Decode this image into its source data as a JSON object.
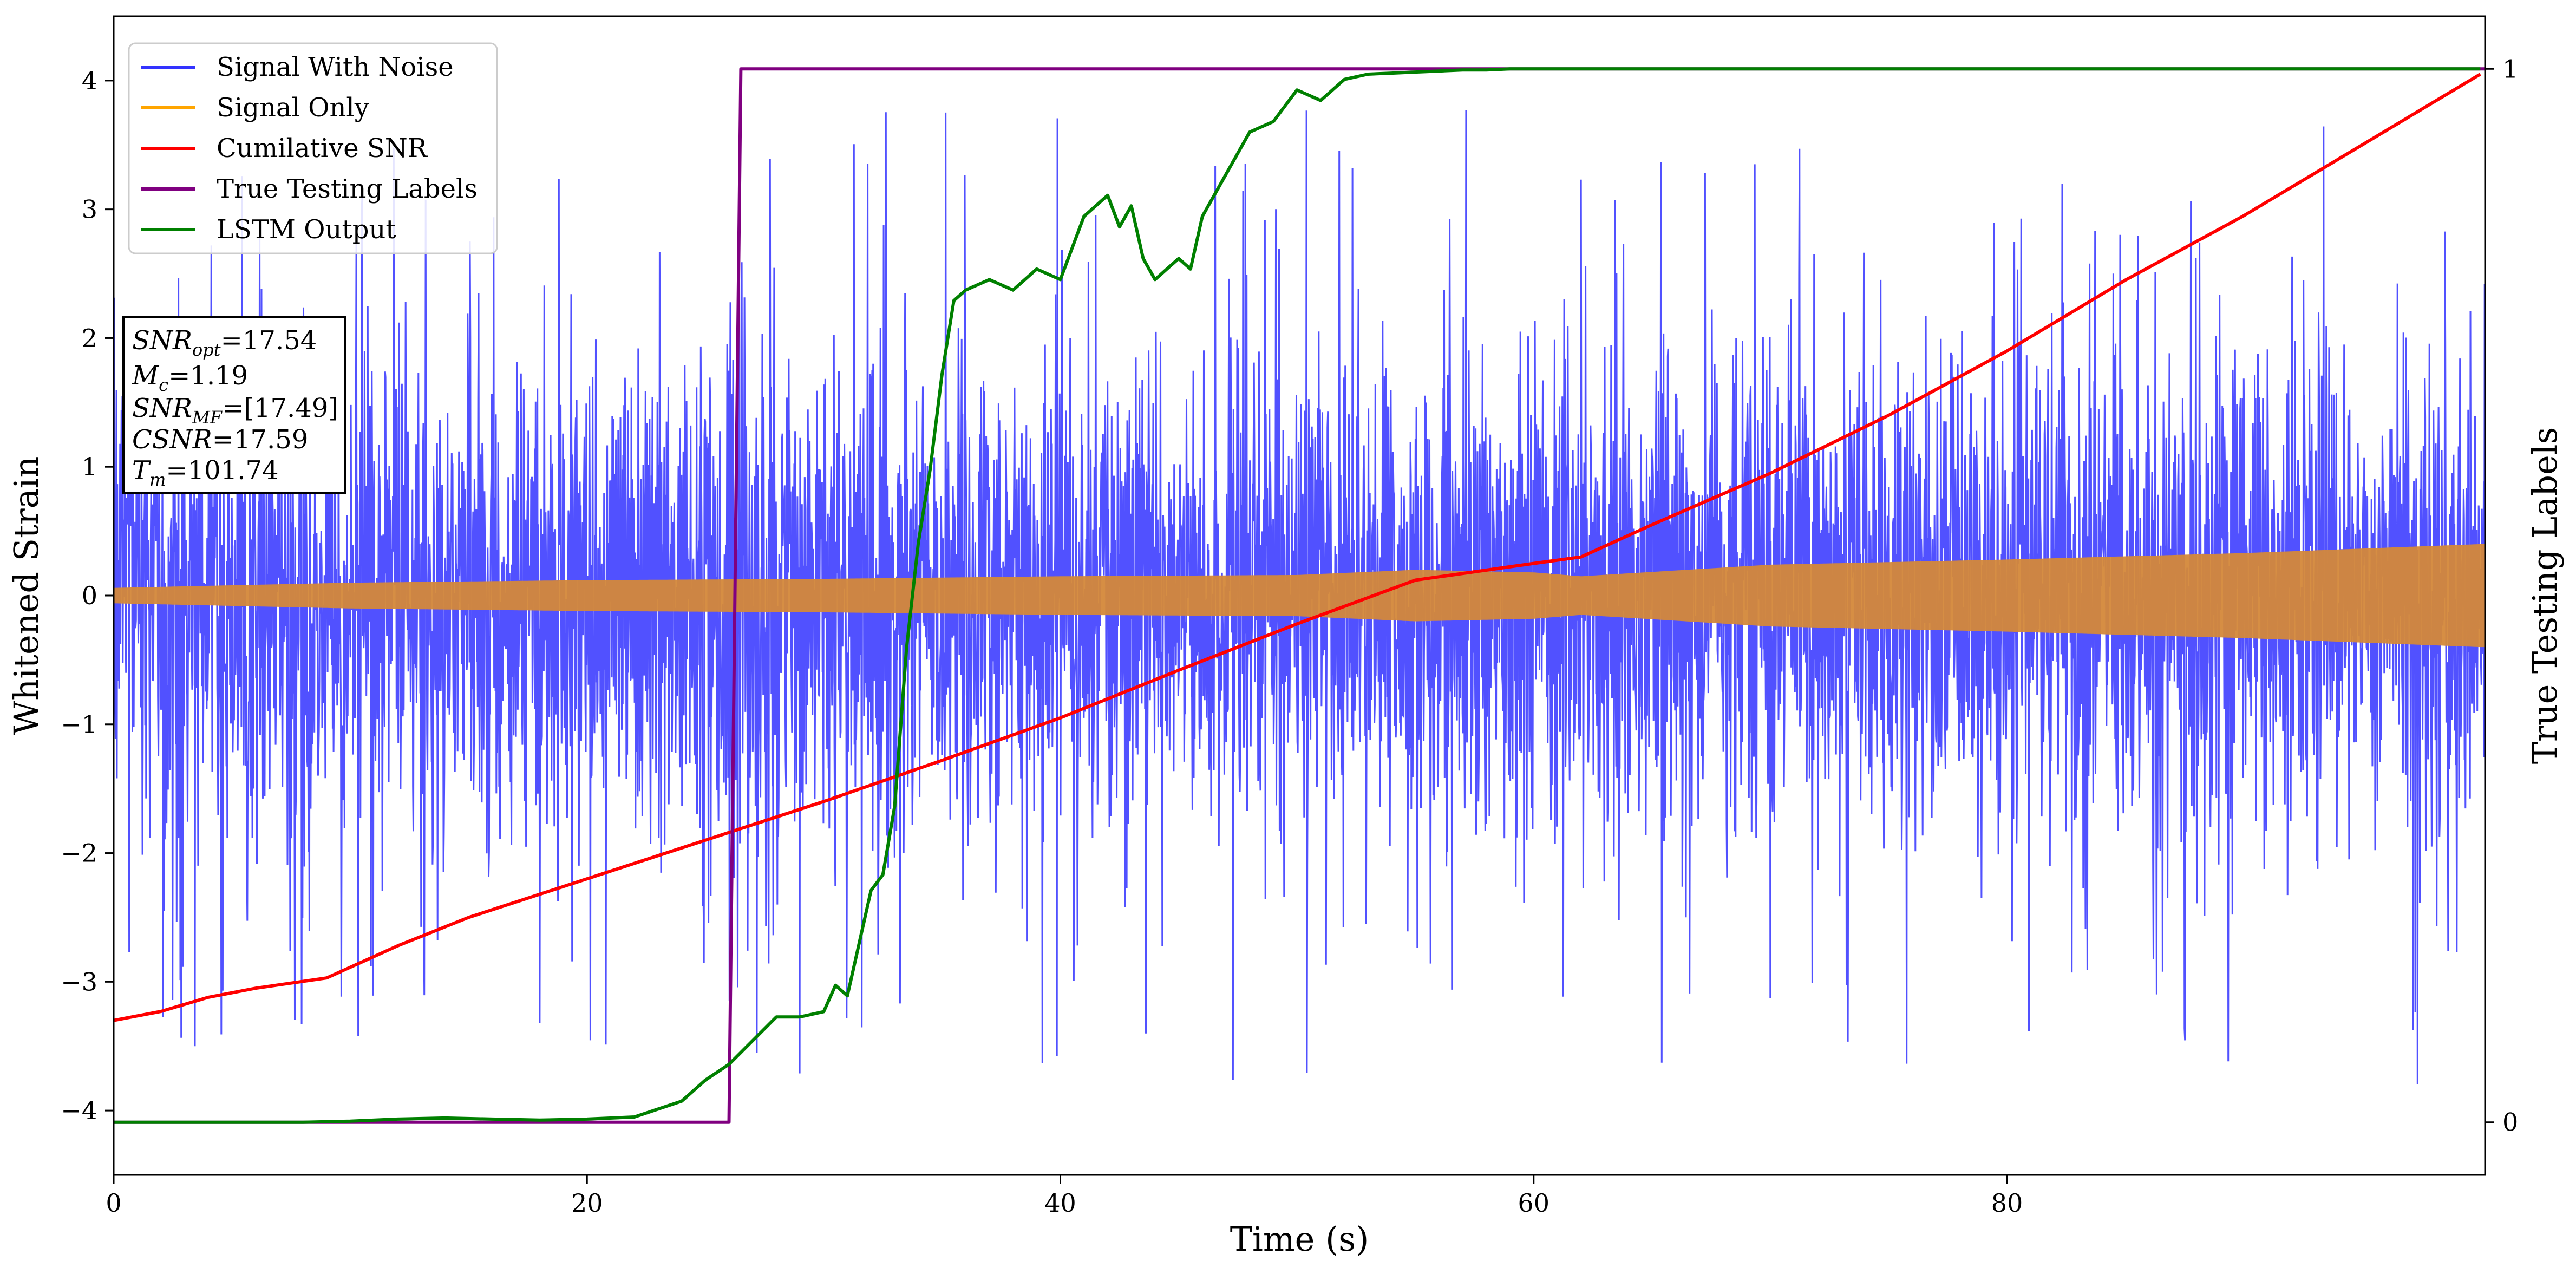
{
  "chart_data": {
    "type": "line",
    "xlabel": "Time (s)",
    "ylabel": "Whitened Strain",
    "ylabel_right": "True Testing Labels",
    "xlim": [
      0,
      100.2
    ],
    "ylim": [
      -4.5,
      4.5
    ],
    "ylim_right": [
      -0.05,
      1.05
    ],
    "x_ticks": [
      0,
      20,
      40,
      60,
      80
    ],
    "y_ticks": [
      -4,
      -3,
      -2,
      -1,
      0,
      1,
      2,
      3,
      4
    ],
    "y_right_ticks": [
      0,
      1
    ],
    "grid": false,
    "legend_position": "top-left",
    "annotation": {
      "lines": [
        "SNR_opt=17.54",
        "M_c=1.19",
        "SNR_MF=[17.49]",
        "CSNR=17.59",
        "T_m=101.74"
      ]
    },
    "series": [
      {
        "name": "Signal With Noise",
        "color": "#3333ff",
        "axis": "left",
        "style": "noise",
        "envelope": {
          "typical_abs": 1.5,
          "peak_abs": 4.1
        }
      },
      {
        "name": "Signal Only",
        "color": "#ffa500",
        "axis": "left",
        "style": "band",
        "amplitude_x": [
          0,
          10,
          20,
          30,
          40,
          50,
          55,
          60,
          62,
          70,
          80,
          90,
          100
        ],
        "amplitude_y": [
          0.06,
          0.1,
          0.12,
          0.13,
          0.15,
          0.16,
          0.2,
          0.18,
          0.15,
          0.24,
          0.28,
          0.33,
          0.4
        ]
      },
      {
        "name": "Cumilative SNR",
        "color": "#ff0000",
        "axis": "left",
        "x": [
          0,
          2,
          4,
          6,
          9,
          12,
          15,
          20,
          25,
          30,
          35,
          40,
          45,
          50,
          55,
          60,
          62,
          65,
          70,
          75,
          80,
          85,
          90,
          95,
          100
        ],
        "y": [
          -3.3,
          -3.23,
          -3.12,
          -3.05,
          -2.97,
          -2.72,
          -2.5,
          -2.2,
          -1.9,
          -1.6,
          -1.28,
          -0.95,
          -0.58,
          -0.22,
          0.12,
          0.25,
          0.3,
          0.55,
          0.95,
          1.4,
          1.9,
          2.45,
          2.95,
          3.5,
          4.05
        ]
      },
      {
        "name": "True Testing Labels",
        "color": "#800080",
        "axis": "right",
        "x": [
          0,
          26.0,
          26.5,
          100.2
        ],
        "y": [
          0,
          0,
          1,
          1
        ]
      },
      {
        "name": "LSTM Output",
        "color": "#008000",
        "axis": "right",
        "x": [
          0,
          8,
          10,
          12,
          14,
          16,
          18,
          20,
          22,
          24,
          25,
          26,
          28,
          29,
          30,
          30.5,
          31,
          32,
          32.5,
          33,
          33.5,
          34,
          34.5,
          35,
          35.5,
          36,
          37,
          38,
          39,
          40,
          41,
          42,
          42.5,
          43,
          43.5,
          44,
          44.5,
          45,
          45.5,
          46,
          47,
          48,
          49,
          50,
          51,
          52,
          53,
          54,
          55,
          56,
          57,
          58,
          59,
          60,
          65,
          70,
          75,
          80,
          85,
          90,
          95,
          100
        ],
        "y": [
          0,
          0,
          0.001,
          0.003,
          0.004,
          0.003,
          0.002,
          0.003,
          0.005,
          0.02,
          0.04,
          0.055,
          0.1,
          0.1,
          0.105,
          0.13,
          0.12,
          0.22,
          0.235,
          0.3,
          0.45,
          0.55,
          0.62,
          0.71,
          0.78,
          0.79,
          0.8,
          0.79,
          0.81,
          0.8,
          0.86,
          0.88,
          0.85,
          0.87,
          0.82,
          0.8,
          0.81,
          0.82,
          0.81,
          0.86,
          0.9,
          0.94,
          0.95,
          0.98,
          0.97,
          0.99,
          0.995,
          0.996,
          0.997,
          0.998,
          0.999,
          0.999,
          1,
          1,
          1,
          1,
          1,
          1,
          1,
          1,
          1,
          1
        ]
      }
    ]
  }
}
